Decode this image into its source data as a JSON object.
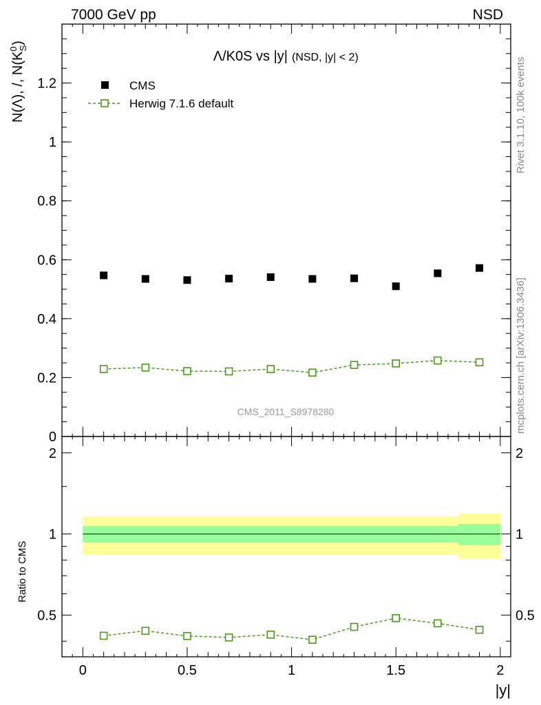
{
  "header": {
    "energy_label": "7000 GeV pp",
    "process_label": "NSD"
  },
  "side": {
    "rivet_label": "Rivet 3.1.10,  100k events",
    "mcplots_label": "mcplots.cern.ch [arXiv:1306.3436]"
  },
  "chart_data": [
    {
      "type": "scatter",
      "panel": "main",
      "title_main": "Λ/K0S vs |y|",
      "title_sub": "(NSD, |y| < 2)",
      "xlabel": "",
      "ylabel": "N(Λ), /, N(K⁰_S)",
      "ylabel_text": "N(Λ), /, N(K",
      "ylabel_sup": "0",
      "ylabel_sub": "S",
      "ylabel_end": ")",
      "xlim": [
        -0.1,
        2.05
      ],
      "ylim": [
        0,
        1.4
      ],
      "y_ticks": [
        0,
        0.2,
        0.4,
        0.6,
        0.8,
        1,
        1.2
      ],
      "y_tick_labels": [
        "0",
        "0.2",
        "0.4",
        "0.6",
        "0.8",
        "1",
        "1.2"
      ],
      "legend_position": "top-left",
      "watermark": "CMS_2011_S8978280",
      "series": [
        {
          "name": "CMS",
          "color": "#000000",
          "marker": "filled-square",
          "x": [
            0.1,
            0.3,
            0.5,
            0.7,
            0.9,
            1.1,
            1.3,
            1.5,
            1.7,
            1.9
          ],
          "y": [
            0.547,
            0.535,
            0.531,
            0.536,
            0.541,
            0.535,
            0.537,
            0.51,
            0.554,
            0.572
          ]
        },
        {
          "name": "Herwig 7.1.6 default",
          "color": "#4a9a1a",
          "marker": "open-square",
          "line": "dashed",
          "x": [
            0.1,
            0.3,
            0.5,
            0.7,
            0.9,
            1.1,
            1.3,
            1.5,
            1.7,
            1.9
          ],
          "y": [
            0.229,
            0.234,
            0.222,
            0.221,
            0.229,
            0.217,
            0.243,
            0.248,
            0.258,
            0.252
          ]
        }
      ]
    },
    {
      "type": "scatter",
      "panel": "ratio",
      "xlabel": "|y|",
      "ylabel": "Ratio to CMS",
      "xlim": [
        -0.1,
        2.05
      ],
      "ylim": [
        0.35,
        2.3
      ],
      "x_ticks": [
        0,
        0.5,
        1,
        1.5,
        2
      ],
      "x_tick_labels": [
        "0",
        "0.5",
        "1",
        "1.5",
        "2"
      ],
      "y_ticks": [
        0.5,
        1,
        2
      ],
      "y_tick_labels": [
        "0.5",
        "1",
        "2"
      ],
      "reference_line": 1,
      "bands": [
        {
          "name": "stat",
          "color": "#99ff99",
          "segments": [
            {
              "x0": 0,
              "x1": 1.8,
              "lo": 0.93,
              "hi": 1.07
            },
            {
              "x0": 1.8,
              "x1": 2.0,
              "lo": 0.91,
              "hi": 1.09
            }
          ]
        },
        {
          "name": "stat+syst",
          "color": "#ffff99",
          "segments": [
            {
              "x0": 0,
              "x1": 1.8,
              "lo": 0.84,
              "hi": 1.16
            },
            {
              "x0": 1.8,
              "x1": 2.0,
              "lo": 0.81,
              "hi": 1.19
            }
          ]
        }
      ],
      "series": [
        {
          "name": "Herwig 7.1.6 default",
          "color": "#4a9a1a",
          "marker": "open-square",
          "line": "dashed",
          "x": [
            0.1,
            0.3,
            0.5,
            0.7,
            0.9,
            1.1,
            1.3,
            1.5,
            1.7,
            1.9
          ],
          "y": [
            0.419,
            0.437,
            0.418,
            0.413,
            0.423,
            0.405,
            0.452,
            0.487,
            0.466,
            0.441
          ]
        }
      ]
    }
  ]
}
